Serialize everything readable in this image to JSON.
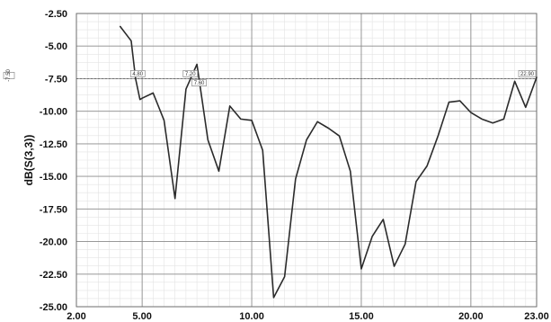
{
  "chart_data": {
    "type": "line",
    "title": "",
    "xlabel": "",
    "ylabel": "dB(S(3,3))",
    "xlim": [
      2.0,
      23.0
    ],
    "ylim": [
      -25.0,
      -2.5
    ],
    "grid": true,
    "x_ticks": [
      "2.00",
      "5.00",
      "10.00",
      "15.00",
      "20.00",
      "23.00"
    ],
    "y_ticks": [
      "-2.50",
      "-5.00",
      "-7.50",
      "-10.00",
      "-12.50",
      "-15.00",
      "-17.50",
      "-20.00",
      "-22.50",
      "-25.00"
    ],
    "reference_line": {
      "y": -7.5,
      "label": "-7.50"
    },
    "markers": [
      {
        "x": 4.8,
        "y": -7.5,
        "label": "4.80"
      },
      {
        "x": 7.2,
        "y": -7.5,
        "label": "7.20"
      },
      {
        "x": 7.6,
        "y": -8.2,
        "label": "7.60"
      },
      {
        "x": 22.9,
        "y": -7.5,
        "label": "22.90"
      }
    ],
    "series": [
      {
        "color": "#2b2b2b",
        "x": [
          4.0,
          4.5,
          4.7,
          4.9,
          5.0,
          5.5,
          6.0,
          6.5,
          7.0,
          7.5,
          8.0,
          8.5,
          9.0,
          9.5,
          10.0,
          10.5,
          11.0,
          11.5,
          12.0,
          12.5,
          13.0,
          13.5,
          14.0,
          14.5,
          15.0,
          15.5,
          16.0,
          16.5,
          17.0,
          17.5,
          18.0,
          18.5,
          19.0,
          19.5,
          20.0,
          20.5,
          21.0,
          21.5,
          22.0,
          22.5,
          23.0
        ],
        "y": [
          -3.5,
          -4.6,
          -7.5,
          -9.1,
          -9.0,
          -8.6,
          -10.7,
          -16.7,
          -8.3,
          -6.4,
          -12.2,
          -14.6,
          -9.6,
          -10.6,
          -10.7,
          -13.0,
          -24.3,
          -22.7,
          -15.2,
          -12.2,
          -10.8,
          -11.3,
          -11.9,
          -14.6,
          -22.1,
          -19.6,
          -18.3,
          -21.9,
          -20.2,
          -15.4,
          -14.2,
          -11.9,
          -9.3,
          -9.2,
          -10.1,
          -10.6,
          -10.9,
          -10.6,
          -7.7,
          -9.7,
          -7.4
        ]
      }
    ]
  }
}
